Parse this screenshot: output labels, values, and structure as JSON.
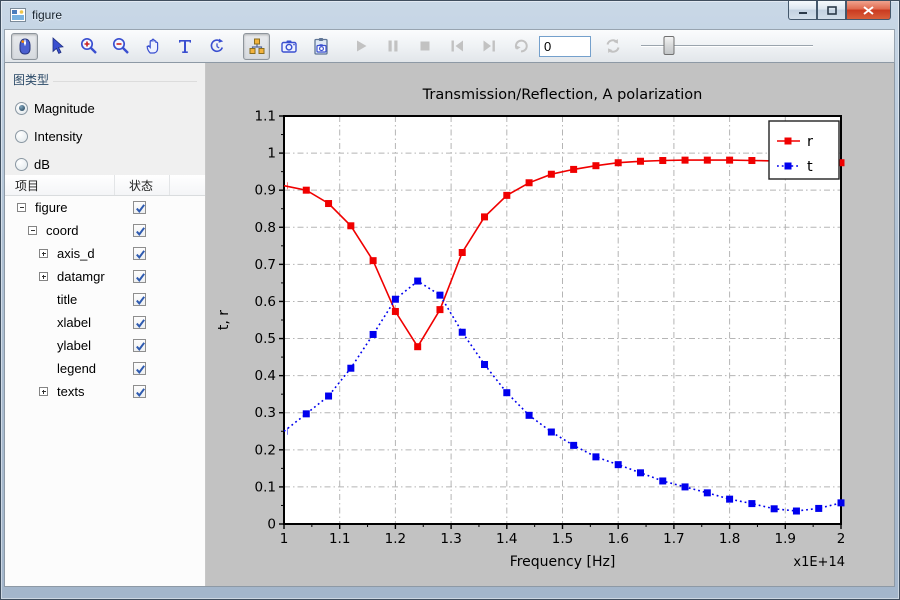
{
  "window": {
    "title": "figure",
    "controls": {
      "minimize": "minimize",
      "maximize": "maximize",
      "close": "close"
    }
  },
  "toolbar": {
    "buttons": [
      {
        "name": "mouse-mode",
        "state": "selected"
      },
      {
        "name": "select-cursor",
        "state": "enabled"
      },
      {
        "name": "zoom-in",
        "state": "enabled"
      },
      {
        "name": "zoom-out",
        "state": "enabled"
      },
      {
        "name": "pan-hand",
        "state": "enabled"
      },
      {
        "name": "add-text",
        "state": "enabled"
      },
      {
        "name": "rotate",
        "state": "enabled"
      },
      {
        "name": "object-tree",
        "state": "selected"
      },
      {
        "name": "snapshot-camera",
        "state": "enabled"
      },
      {
        "name": "clipboard-capture",
        "state": "enabled"
      },
      {
        "name": "play",
        "state": "disabled"
      },
      {
        "name": "pause",
        "state": "disabled"
      },
      {
        "name": "stop",
        "state": "disabled"
      },
      {
        "name": "skip-to-start",
        "state": "disabled"
      },
      {
        "name": "skip-to-end",
        "state": "disabled"
      },
      {
        "name": "redo",
        "state": "disabled"
      },
      {
        "name": "refresh",
        "state": "disabled"
      }
    ],
    "frame_input": {
      "value": "0"
    },
    "slider": {
      "fraction": 0.16
    }
  },
  "sidebar": {
    "plot_type_group": {
      "label": "图类型",
      "options": [
        {
          "label": "Magnitude",
          "selected": true
        },
        {
          "label": "Intensity",
          "selected": false
        },
        {
          "label": "dB",
          "selected": false
        }
      ]
    },
    "tree": {
      "columns": {
        "items": "项目",
        "state": "状态"
      },
      "items": [
        {
          "label": "figure",
          "level": 0,
          "expander": "minus",
          "checked": true
        },
        {
          "label": "coord",
          "level": 1,
          "expander": "minus",
          "checked": true
        },
        {
          "label": "axis_d",
          "level": 2,
          "expander": "plus",
          "checked": true
        },
        {
          "label": "datamgr",
          "level": 2,
          "expander": "plus",
          "checked": true
        },
        {
          "label": "title",
          "level": 2,
          "expander": "none",
          "checked": true
        },
        {
          "label": "xlabel",
          "level": 2,
          "expander": "none",
          "checked": true
        },
        {
          "label": "ylabel",
          "level": 2,
          "expander": "none",
          "checked": true
        },
        {
          "label": "legend",
          "level": 2,
          "expander": "none",
          "checked": true
        },
        {
          "label": "texts",
          "level": 2,
          "expander": "plus",
          "checked": true
        }
      ]
    }
  },
  "chart_data": {
    "type": "line",
    "title": "Transmission/Reflection, A polarization",
    "xlabel": "Frequency [Hz]",
    "ylabel": "t, r",
    "offset_label": "x1E+14",
    "xlim": [
      1,
      2
    ],
    "ylim": [
      0,
      1.1
    ],
    "xticks": [
      1,
      1.1,
      1.2,
      1.3,
      1.4,
      1.5,
      1.6,
      1.7,
      1.8,
      1.9,
      2
    ],
    "xtick_labels": [
      "1",
      "1.1",
      "1.2",
      "1.3",
      "1.4",
      "1.5",
      "1.6",
      "1.7",
      "1.8",
      "1.9",
      "2"
    ],
    "yticks": [
      0,
      0.1,
      0.2,
      0.3,
      0.4,
      0.5,
      0.6,
      0.7,
      0.8,
      0.9,
      1,
      1.1
    ],
    "ytick_labels": [
      "0",
      "0.1",
      "0.2",
      "0.3",
      "0.4",
      "0.5",
      "0.6",
      "0.7",
      "0.8",
      "0.9",
      "1",
      "1.1"
    ],
    "grid": true,
    "legend_position": "top-right",
    "background": {
      "figure": "#c2c2c2",
      "axes": "#ffffff"
    },
    "x": [
      1.0,
      1.04,
      1.08,
      1.12,
      1.16,
      1.2,
      1.24,
      1.28,
      1.32,
      1.36,
      1.4,
      1.44,
      1.48,
      1.52,
      1.56,
      1.6,
      1.64,
      1.68,
      1.72,
      1.76,
      1.8,
      1.84,
      1.88,
      1.92,
      1.96,
      2.0
    ],
    "series": [
      {
        "name": "r",
        "color": "#f00000",
        "line": "solid",
        "marker": "square",
        "values": [
          0.912,
          0.9,
          0.864,
          0.804,
          0.71,
          0.573,
          0.478,
          0.578,
          0.732,
          0.828,
          0.886,
          0.92,
          0.943,
          0.956,
          0.966,
          0.974,
          0.978,
          0.98,
          0.981,
          0.981,
          0.981,
          0.98,
          0.979,
          0.978,
          0.976,
          0.974
        ]
      },
      {
        "name": "t",
        "color": "#0000ee",
        "line": "dotted",
        "marker": "square",
        "values": [
          0.25,
          0.297,
          0.345,
          0.42,
          0.511,
          0.606,
          0.655,
          0.617,
          0.517,
          0.43,
          0.354,
          0.293,
          0.248,
          0.212,
          0.181,
          0.16,
          0.138,
          0.116,
          0.1,
          0.084,
          0.067,
          0.055,
          0.041,
          0.035,
          0.042,
          0.057
        ]
      }
    ]
  }
}
